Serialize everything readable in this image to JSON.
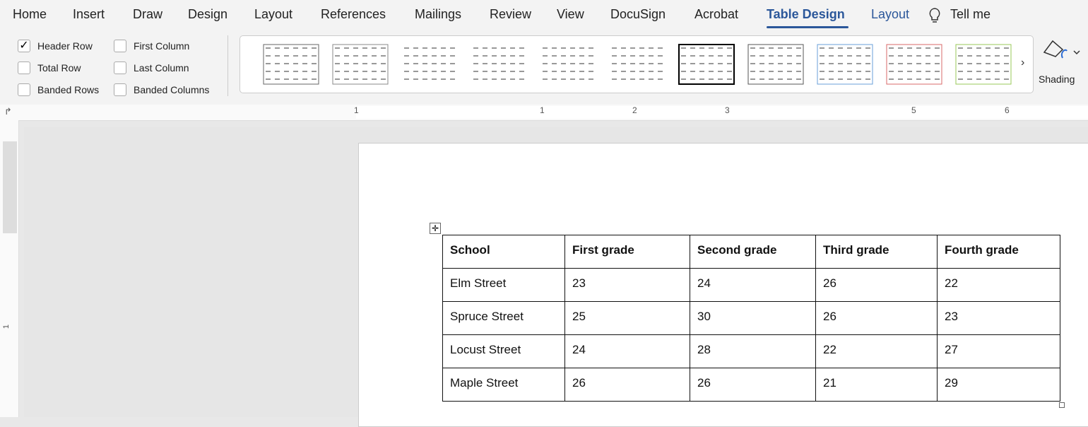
{
  "ribbon": {
    "tabs": [
      "Home",
      "Insert",
      "Draw",
      "Design",
      "Layout",
      "References",
      "Mailings",
      "Review",
      "View",
      "DocuSign",
      "Acrobat",
      "Table Design",
      "Layout",
      "Tell me"
    ],
    "options": [
      {
        "label": "Header Row",
        "checked": true
      },
      {
        "label": "Total Row",
        "checked": false
      },
      {
        "label": "Banded Rows",
        "checked": false
      },
      {
        "label": "First Column",
        "checked": false
      },
      {
        "label": "Last Column",
        "checked": false
      },
      {
        "label": "Banded Columns",
        "checked": false
      }
    ],
    "shading": "Shading"
  },
  "ruler": {
    "labels": [
      "1",
      "1",
      "2",
      "3",
      "5",
      "6"
    ],
    "vertical_label": "1"
  },
  "table": {
    "header": [
      "School",
      "First grade",
      "Second grade",
      "Third grade",
      "Fourth grade"
    ],
    "rows": [
      [
        "Elm Street",
        23,
        24,
        26,
        22
      ],
      [
        "Spruce Street",
        25,
        30,
        26,
        23
      ],
      [
        "Locust Street",
        24,
        28,
        22,
        27
      ],
      [
        "Maple Street",
        26,
        26,
        21,
        29
      ]
    ]
  }
}
